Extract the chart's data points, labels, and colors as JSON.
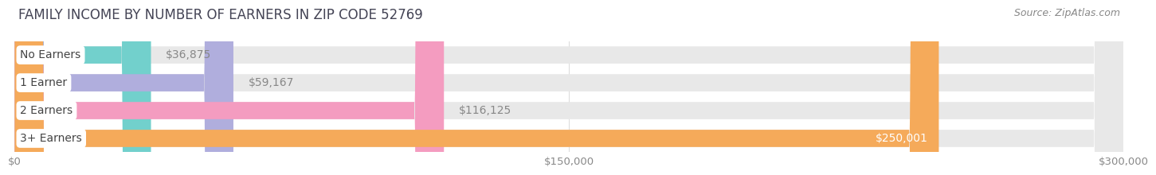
{
  "title": "FAMILY INCOME BY NUMBER OF EARNERS IN ZIP CODE 52769",
  "source": "Source: ZipAtlas.com",
  "categories": [
    "No Earners",
    "1 Earner",
    "2 Earners",
    "3+ Earners"
  ],
  "values": [
    36875,
    59167,
    116125,
    250001
  ],
  "bar_colors": [
    "#72d0cc",
    "#b0aedd",
    "#f49cc0",
    "#f5aa5a"
  ],
  "value_label_colors": [
    "#888888",
    "#888888",
    "#888888",
    "#ffffff"
  ],
  "background_color": "#ffffff",
  "bar_bg_color": "#e8e8e8",
  "xlim": [
    0,
    300000
  ],
  "xticks": [
    0,
    150000,
    300000
  ],
  "xtick_labels": [
    "$0",
    "$150,000",
    "$300,000"
  ],
  "title_fontsize": 12,
  "source_fontsize": 9,
  "bar_label_fontsize": 10,
  "category_fontsize": 10,
  "bar_height": 0.62,
  "value_labels": [
    "$36,875",
    "$59,167",
    "$116,125",
    "$250,001"
  ]
}
